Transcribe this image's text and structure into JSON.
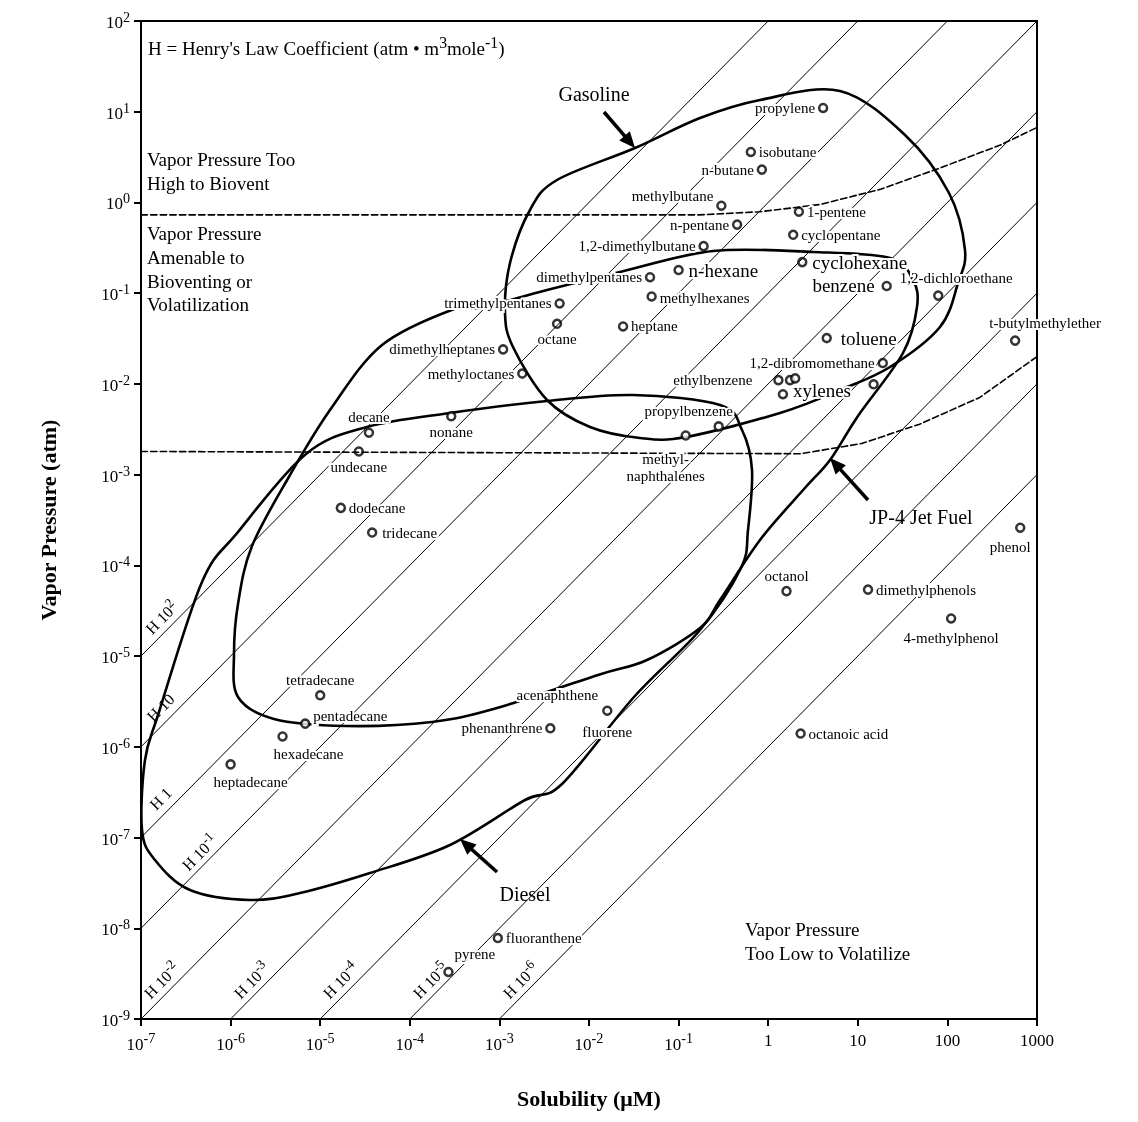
{
  "chart_data": {
    "type": "scatter",
    "xlabel": "Solubility (μM)",
    "ylabel": "Vapor Pressure (atm)",
    "log": "xy",
    "marker": "circle",
    "xlim": [
      1e-07,
      1000
    ],
    "ylim": [
      1e-09,
      100
    ],
    "xticks": [
      {
        "value": 1e-07,
        "label": "10$^{-7}$"
      },
      {
        "value": 1e-06,
        "label": "10$^{-6}$"
      },
      {
        "value": 1e-05,
        "label": "10$^{-5}$"
      },
      {
        "value": 0.0001,
        "label": "10$^{-4}$"
      },
      {
        "value": 0.001,
        "label": "10$^{-3}$"
      },
      {
        "value": 0.01,
        "label": "10$^{-2}$"
      },
      {
        "value": 0.1,
        "label": "10$^{-1}$"
      },
      1,
      10,
      100,
      1000
    ],
    "yticks": [
      {
        "value": 1e-09,
        "label": "10$^{-9}$"
      },
      {
        "value": 1e-08,
        "label": "10$^{-8}$"
      },
      {
        "value": 1e-07,
        "label": "10$^{-7}$"
      },
      {
        "value": 1e-06,
        "label": "10$^{-6}$"
      },
      {
        "value": 1e-05,
        "label": "10$^{-5}$"
      },
      {
        "value": 0.0001,
        "label": "10$^{-4}$"
      },
      {
        "value": 0.001,
        "label": "10$^{-3}$"
      },
      {
        "value": 0.01,
        "label": "10$^{-2}$"
      },
      {
        "value": 0.1,
        "label": "10$^{-1}$"
      },
      {
        "value": 1,
        "label": "10$^{0}$"
      },
      {
        "value": 10,
        "label": "10$^{1}$"
      },
      {
        "value": 100,
        "label": "10$^{2}$"
      }
    ],
    "annotations": [
      "H = Henry's Law Coefficient (atm • m$^{3}$mole$^{-1}$)",
      "Vapor Pressure Too\nHigh to Biovent",
      "Vapor Pressure\nAmenable to\nBioventing or\nVolatilization",
      "Vapor Pressure\nToo Low to Volatilize",
      "Gasoline",
      "JP-4 Jet Fuel",
      "Diesel",
      {
        "text": "propylene",
        "x": 4.1,
        "y": 11
      },
      {
        "text": "isobutane",
        "x": 0.64,
        "y": 3.6
      },
      {
        "text": "n-butane",
        "x": 0.85,
        "y": 2.3
      },
      {
        "text": "methylbutane",
        "x": 0.3,
        "y": 0.92
      },
      {
        "text": "1-pentene",
        "x": 2.2,
        "y": 0.79
      },
      {
        "text": "n-pentane",
        "x": 0.45,
        "y": 0.57
      },
      {
        "text": "cyclopentane",
        "x": 1.9,
        "y": 0.44
      },
      {
        "text": "1,2-dimethylbutane",
        "x": 0.19,
        "y": 0.33
      },
      {
        "text": "cyclohexane",
        "x": 2.4,
        "y": 0.22
      },
      {
        "text": "n-hexane",
        "x": 0.1,
        "y": 0.18
      },
      {
        "text": "dimethylpentanes",
        "x": 0.048,
        "y": 0.15
      },
      {
        "text": "benzene",
        "x": 21,
        "y": 0.12
      },
      {
        "text": "1,2-dichloroethane",
        "x": 79,
        "y": 0.094
      },
      {
        "text": "methylhexanes",
        "x": 0.05,
        "y": 0.092
      },
      {
        "text": "trimethylpentanes",
        "x": 0.0047,
        "y": 0.077
      },
      {
        "text": "octane",
        "x": 0.0044,
        "y": 0.046
      },
      {
        "text": "heptane",
        "x": 0.024,
        "y": 0.043
      },
      {
        "text": "toluene",
        "x": 4.5,
        "y": 0.032
      },
      {
        "text": "t-butylmethylether",
        "x": 570,
        "y": 0.03
      },
      {
        "text": "dimethylheptanes",
        "x": 0.0011,
        "y": 0.024
      },
      {
        "text": "1,2-dibromomethane",
        "x": 19,
        "y": 0.017
      },
      {
        "text": "methyloctanes",
        "x": 0.0018,
        "y": 0.013
      },
      {
        "text": "ethylbenzene",
        "x": 1.3,
        "y": 0.011
      },
      {
        "text": "xylenes",
        "x": 1.46,
        "y": 0.0077
      },
      {
        "text": "propylbenzene",
        "x": 0.28,
        "y": 0.0034
      },
      {
        "text": "methyl-\nnaphthalenes",
        "x": 0.12,
        "y": 0.0027
      },
      {
        "text": "nonane",
        "x": 0.00029,
        "y": 0.0044
      },
      {
        "text": "decane",
        "x": 3.5e-05,
        "y": 0.0029
      },
      {
        "text": "undecane",
        "x": 2.7e-05,
        "y": 0.0018
      },
      {
        "text": "dodecane",
        "x": 1.7e-05,
        "y": 0.00043
      },
      {
        "text": "tridecane",
        "x": 3.8e-05,
        "y": 0.00023
      },
      {
        "text": "phenol",
        "x": 650,
        "y": 0.00026
      },
      {
        "text": "octanol",
        "x": 1.6,
        "y": 5.2e-05
      },
      {
        "text": "dimethylphenols",
        "x": 13,
        "y": 5.4e-05
      },
      {
        "text": "4-methylphenol",
        "x": 110,
        "y": 2.6e-05
      },
      {
        "text": "tetradecane",
        "x": 1e-05,
        "y": 3.7e-06
      },
      {
        "text": "pentadecane",
        "x": 6.8e-06,
        "y": 1.8e-06
      },
      {
        "text": "hexadecane",
        "x": 3.8e-06,
        "y": 1.3e-06
      },
      {
        "text": "heptadecane",
        "x": 1e-06,
        "y": 6.4e-07
      },
      {
        "text": "acenaphthene",
        "x": 0.016,
        "y": 2.5e-06
      },
      {
        "text": "fluorene",
        "x": 0.016,
        "y": 2.5e-06
      },
      {
        "text": "phenanthrene",
        "x": 0.0037,
        "y": 1.6e-06
      },
      {
        "text": "octanoic acid",
        "x": 2.3,
        "y": 1.4e-06
      },
      {
        "text": "fluoranthene",
        "x": 0.00096,
        "y": 7.8e-09
      },
      {
        "text": "pyrene",
        "x": 0.00027,
        "y": 3.3e-09
      }
    ],
    "series": [
      {
        "type": "line",
        "name": "H 10$^{2}$",
        "color": "#000000",
        "marker": "none",
        "x": [
          1e-07,
          1
        ],
        "values": [
          1e-05,
          100
        ]
      },
      {
        "type": "line",
        "name": "H 10",
        "color": "#000000",
        "marker": "none",
        "x": [
          1e-07,
          10
        ],
        "values": [
          1e-06,
          100
        ]
      },
      {
        "type": "line",
        "name": "H 1",
        "color": "#000000",
        "marker": "none",
        "x": [
          1e-07,
          100
        ],
        "values": [
          1e-07,
          100
        ]
      },
      {
        "type": "line",
        "name": "H 10$^{-1}$",
        "color": "#000000",
        "marker": "none",
        "x": [
          1e-07,
          1000
        ],
        "values": [
          1e-08,
          100
        ]
      },
      {
        "type": "line",
        "name": "H 10$^{-2}$",
        "color": "#000000",
        "marker": "none",
        "x": [
          1e-07,
          1000
        ],
        "values": [
          1e-09,
          10
        ]
      },
      {
        "type": "line",
        "name": "H 10$^{-3}$",
        "color": "#000000",
        "marker": "none",
        "x": [
          1e-06,
          1000
        ],
        "values": [
          1e-09,
          1
        ]
      },
      {
        "type": "line",
        "name": "H 10$^{-4}$",
        "color": "#000000",
        "marker": "none",
        "x": [
          1e-05,
          1000
        ],
        "values": [
          1e-09,
          0.1
        ]
      },
      {
        "type": "line",
        "name": "H 10$^{-5}$",
        "color": "#000000",
        "marker": "none",
        "x": [
          0.0001,
          1000
        ],
        "values": [
          1e-09,
          0.01
        ]
      },
      {
        "type": "line",
        "name": "H 10$^{-6}$",
        "color": "#000000",
        "marker": "none",
        "x": [
          0.001,
          1000
        ],
        "values": [
          1e-09,
          0.001
        ]
      },
      {
        "type": "line",
        "color": "#000000",
        "marker": "none",
        "line_style": "dashed",
        "x": [
          1e-07,
          0.17,
          0.81,
          3.8,
          18,
          83,
          390,
          1000
        ],
        "values": [
          0.73,
          0.73,
          0.79,
          0.95,
          1.4,
          2.4,
          4.3,
          6.7
        ]
      },
      {
        "type": "line",
        "color": "#000000",
        "marker": "none",
        "line_style": "dashed",
        "x": [
          1e-07,
          2.3,
          11,
          49,
          230,
          1000
        ],
        "values": [
          0.0018,
          0.0017,
          0.0022,
          0.0036,
          0.0071,
          0.02
        ]
      },
      {
        "color": "#000000",
        "x": [
          4.1,
          0.64,
          0.85,
          0.3,
          2.2,
          0.45,
          1.9,
          0.19,
          2.4,
          0.1,
          0.048,
          21,
          79,
          0.05,
          0.0047,
          0.0044,
          0.024,
          4.5,
          570,
          0.0011,
          19,
          0.0018,
          1.3,
          1.75,
          2.0,
          1.46,
          15,
          0.28,
          0.12,
          0.00029,
          3.5e-05,
          2.7e-05,
          1.7e-05,
          3.8e-05,
          650,
          1.6,
          13,
          110,
          1e-05,
          6.8e-06,
          3.8e-06,
          1e-06,
          0.016,
          0.0037,
          2.3,
          0.00096,
          0.00027
        ],
        "values": [
          11,
          3.6,
          2.3,
          0.92,
          0.79,
          0.57,
          0.44,
          0.33,
          0.22,
          0.18,
          0.15,
          0.12,
          0.094,
          0.092,
          0.077,
          0.046,
          0.043,
          0.032,
          0.03,
          0.024,
          0.017,
          0.013,
          0.011,
          0.011,
          0.0115,
          0.0077,
          0.0099,
          0.0034,
          0.0027,
          0.0044,
          0.0029,
          0.0018,
          0.00043,
          0.00023,
          0.00026,
          5.2e-05,
          5.4e-05,
          2.6e-05,
          3.7e-06,
          1.8e-06,
          1.3e-06,
          6.4e-07,
          2.5e-06,
          1.6e-06,
          1.4e-06,
          7.8e-09,
          3.3e-09
        ]
      }
    ]
  }
}
